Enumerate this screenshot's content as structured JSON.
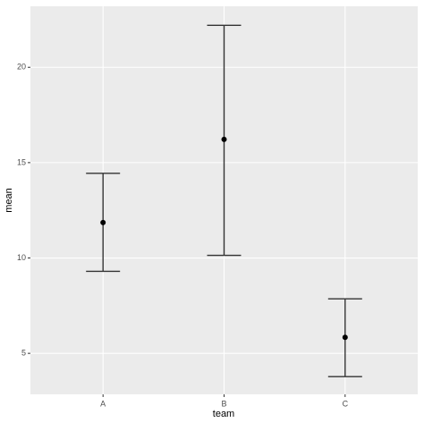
{
  "chart_data": {
    "type": "errorbar",
    "x_label": "team",
    "y_label": "mean",
    "categories": [
      "A",
      "B",
      "C"
    ],
    "values": [
      11.86,
      16.22,
      5.84
    ],
    "lower": [
      9.3,
      10.14,
      3.78
    ],
    "upper": [
      14.44,
      22.2,
      7.86
    ],
    "color": "#000000",
    "ylim": [
      2.85,
      23.2
    ],
    "yticks": [
      5,
      10,
      15,
      20
    ],
    "grid": true
  }
}
